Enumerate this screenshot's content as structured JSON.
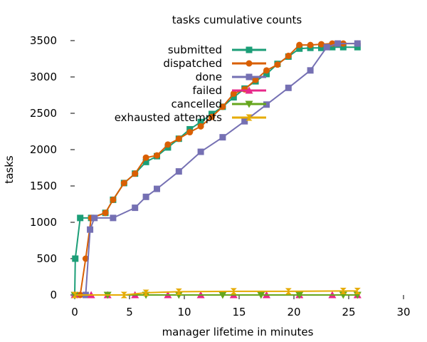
{
  "chart_data": {
    "type": "line",
    "title": "tasks cumulative counts",
    "xlabel": "manager lifetime in minutes",
    "ylabel": "tasks",
    "xlim": [
      0,
      30
    ],
    "ylim": [
      0,
      3500
    ],
    "xticks": [
      0,
      5,
      10,
      15,
      20,
      25,
      30
    ],
    "yticks": [
      0,
      500,
      1000,
      1500,
      2000,
      2500,
      3000,
      3500
    ],
    "grid": false,
    "legend_position": "top-right",
    "series": [
      {
        "name": "submitted",
        "color": "#1b9e77",
        "marker": "square",
        "x": [
          0,
          0.05,
          0.5,
          1.5,
          2.8,
          3.5,
          4.5,
          5.5,
          6.5,
          7.5,
          8.5,
          9.5,
          10.5,
          11.5,
          12.5,
          13.5,
          14.5,
          15.5,
          16.5,
          17.5,
          18.5,
          19.5,
          20.5,
          21.5,
          22.5,
          23.5,
          24.5,
          25.8
        ],
        "y": [
          0,
          500,
          1060,
          1060,
          1130,
          1310,
          1540,
          1670,
          1830,
          1910,
          2030,
          2150,
          2280,
          2380,
          2490,
          2590,
          2720,
          2840,
          2940,
          3040,
          3180,
          3280,
          3390,
          3400,
          3400,
          3410,
          3410,
          3410
        ]
      },
      {
        "name": "dispatched",
        "color": "#d95f02",
        "marker": "circle",
        "x": [
          0,
          0.5,
          1.0,
          1.5,
          2.8,
          3.5,
          4.5,
          5.5,
          6.5,
          7.5,
          8.5,
          9.5,
          10.5,
          11.5,
          12.5,
          13.5,
          14.5,
          15.5,
          16.5,
          17.5,
          18.5,
          19.5,
          20.5,
          21.5,
          22.5,
          23.5,
          24.5,
          25.8
        ],
        "y": [
          0,
          0,
          500,
          1060,
          1130,
          1310,
          1540,
          1670,
          1890,
          1920,
          2070,
          2150,
          2240,
          2320,
          2450,
          2590,
          2770,
          2830,
          2960,
          3090,
          3170,
          3290,
          3440,
          3440,
          3450,
          3460,
          3460,
          3460
        ]
      },
      {
        "name": "done",
        "color": "#7570b3",
        "marker": "square",
        "x": [
          0,
          1.0,
          1.4,
          1.8,
          3.5,
          5.5,
          6.5,
          7.5,
          9.5,
          11.5,
          13.5,
          15.5,
          17.5,
          19.5,
          21.5,
          23.0,
          24.0,
          25.8
        ],
        "y": [
          0,
          0,
          900,
          1060,
          1060,
          1200,
          1350,
          1460,
          1700,
          1970,
          2170,
          2390,
          2620,
          2850,
          3090,
          3410,
          3460,
          3460
        ]
      },
      {
        "name": "failed",
        "color": "#e7298a",
        "marker": "triangle",
        "x": [
          0,
          1.5,
          3.0,
          5.5,
          8.5,
          11.5,
          14.5,
          17.5,
          20.5,
          23.5,
          25.8
        ],
        "y": [
          0,
          0,
          0,
          0,
          0,
          0,
          0,
          0,
          0,
          0,
          0
        ]
      },
      {
        "name": "cancelled",
        "color": "#66a61e",
        "marker": "triangle-down",
        "x": [
          0,
          3.0,
          6.5,
          9.5,
          13.5,
          17.0,
          20.5,
          24.5,
          25.8
        ],
        "y": [
          0,
          0,
          0,
          0,
          0,
          0,
          0,
          0,
          0
        ]
      },
      {
        "name": "exhausted attempts",
        "color": "#e6ab02",
        "marker": "hourglass",
        "x": [
          0,
          4.5,
          6.5,
          9.5,
          14.5,
          19.5,
          24.5,
          25.8
        ],
        "y": [
          0,
          0,
          30,
          45,
          50,
          50,
          55,
          55
        ]
      }
    ]
  }
}
